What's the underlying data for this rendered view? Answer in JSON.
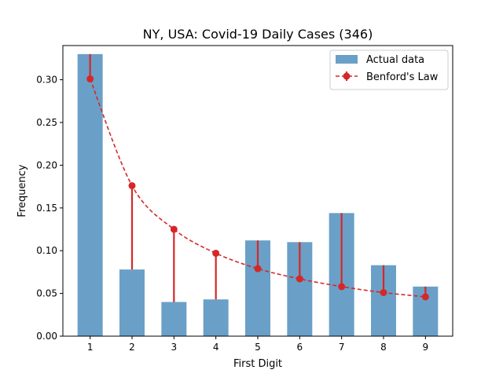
{
  "chart_data": {
    "type": "bar",
    "title": "NY, USA: Covid-19 Daily Cases (346)",
    "xlabel": "First Digit",
    "ylabel": "Frequency",
    "categories": [
      "1",
      "2",
      "3",
      "4",
      "5",
      "6",
      "7",
      "8",
      "9"
    ],
    "ylim": [
      0,
      0.34
    ],
    "yticks": [
      "0.00",
      "0.05",
      "0.10",
      "0.15",
      "0.20",
      "0.25",
      "0.30"
    ],
    "grid": false,
    "legend_position": "upper right",
    "series": [
      {
        "name": "Actual data",
        "kind": "bar",
        "color": "#6aa0c7",
        "values": [
          0.33,
          0.078,
          0.04,
          0.043,
          0.112,
          0.11,
          0.144,
          0.083,
          0.058
        ]
      },
      {
        "name": "Benford's Law",
        "kind": "line-with-errorbars",
        "color": "#d62728",
        "linestyle": "dashed",
        "values": [
          0.301,
          0.176,
          0.125,
          0.097,
          0.079,
          0.067,
          0.058,
          0.051,
          0.046
        ],
        "error_to_actual": true
      }
    ]
  }
}
